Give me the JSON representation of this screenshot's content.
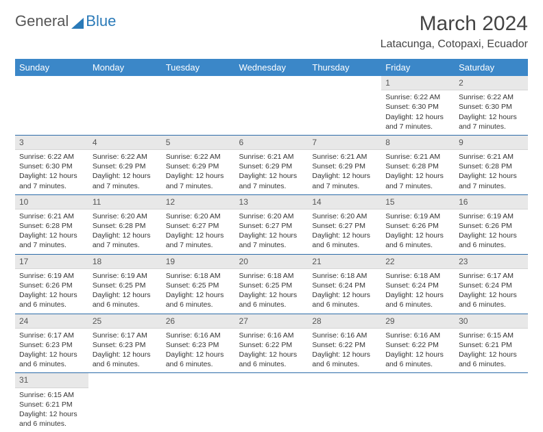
{
  "logo": {
    "part1": "General",
    "part2": "Blue"
  },
  "title": "March 2024",
  "location": "Latacunga, Cotopaxi, Ecuador",
  "headerColor": "#3b87c8",
  "dayHeaders": [
    "Sunday",
    "Monday",
    "Tuesday",
    "Wednesday",
    "Thursday",
    "Friday",
    "Saturday"
  ],
  "weeks": [
    [
      null,
      null,
      null,
      null,
      null,
      {
        "n": "1",
        "sr": "6:22 AM",
        "ss": "6:30 PM",
        "dl": "12 hours and 7 minutes."
      },
      {
        "n": "2",
        "sr": "6:22 AM",
        "ss": "6:30 PM",
        "dl": "12 hours and 7 minutes."
      }
    ],
    [
      {
        "n": "3",
        "sr": "6:22 AM",
        "ss": "6:30 PM",
        "dl": "12 hours and 7 minutes."
      },
      {
        "n": "4",
        "sr": "6:22 AM",
        "ss": "6:29 PM",
        "dl": "12 hours and 7 minutes."
      },
      {
        "n": "5",
        "sr": "6:22 AM",
        "ss": "6:29 PM",
        "dl": "12 hours and 7 minutes."
      },
      {
        "n": "6",
        "sr": "6:21 AM",
        "ss": "6:29 PM",
        "dl": "12 hours and 7 minutes."
      },
      {
        "n": "7",
        "sr": "6:21 AM",
        "ss": "6:29 PM",
        "dl": "12 hours and 7 minutes."
      },
      {
        "n": "8",
        "sr": "6:21 AM",
        "ss": "6:28 PM",
        "dl": "12 hours and 7 minutes."
      },
      {
        "n": "9",
        "sr": "6:21 AM",
        "ss": "6:28 PM",
        "dl": "12 hours and 7 minutes."
      }
    ],
    [
      {
        "n": "10",
        "sr": "6:21 AM",
        "ss": "6:28 PM",
        "dl": "12 hours and 7 minutes."
      },
      {
        "n": "11",
        "sr": "6:20 AM",
        "ss": "6:28 PM",
        "dl": "12 hours and 7 minutes."
      },
      {
        "n": "12",
        "sr": "6:20 AM",
        "ss": "6:27 PM",
        "dl": "12 hours and 7 minutes."
      },
      {
        "n": "13",
        "sr": "6:20 AM",
        "ss": "6:27 PM",
        "dl": "12 hours and 7 minutes."
      },
      {
        "n": "14",
        "sr": "6:20 AM",
        "ss": "6:27 PM",
        "dl": "12 hours and 6 minutes."
      },
      {
        "n": "15",
        "sr": "6:19 AM",
        "ss": "6:26 PM",
        "dl": "12 hours and 6 minutes."
      },
      {
        "n": "16",
        "sr": "6:19 AM",
        "ss": "6:26 PM",
        "dl": "12 hours and 6 minutes."
      }
    ],
    [
      {
        "n": "17",
        "sr": "6:19 AM",
        "ss": "6:26 PM",
        "dl": "12 hours and 6 minutes."
      },
      {
        "n": "18",
        "sr": "6:19 AM",
        "ss": "6:25 PM",
        "dl": "12 hours and 6 minutes."
      },
      {
        "n": "19",
        "sr": "6:18 AM",
        "ss": "6:25 PM",
        "dl": "12 hours and 6 minutes."
      },
      {
        "n": "20",
        "sr": "6:18 AM",
        "ss": "6:25 PM",
        "dl": "12 hours and 6 minutes."
      },
      {
        "n": "21",
        "sr": "6:18 AM",
        "ss": "6:24 PM",
        "dl": "12 hours and 6 minutes."
      },
      {
        "n": "22",
        "sr": "6:18 AM",
        "ss": "6:24 PM",
        "dl": "12 hours and 6 minutes."
      },
      {
        "n": "23",
        "sr": "6:17 AM",
        "ss": "6:24 PM",
        "dl": "12 hours and 6 minutes."
      }
    ],
    [
      {
        "n": "24",
        "sr": "6:17 AM",
        "ss": "6:23 PM",
        "dl": "12 hours and 6 minutes."
      },
      {
        "n": "25",
        "sr": "6:17 AM",
        "ss": "6:23 PM",
        "dl": "12 hours and 6 minutes."
      },
      {
        "n": "26",
        "sr": "6:16 AM",
        "ss": "6:23 PM",
        "dl": "12 hours and 6 minutes."
      },
      {
        "n": "27",
        "sr": "6:16 AM",
        "ss": "6:22 PM",
        "dl": "12 hours and 6 minutes."
      },
      {
        "n": "28",
        "sr": "6:16 AM",
        "ss": "6:22 PM",
        "dl": "12 hours and 6 minutes."
      },
      {
        "n": "29",
        "sr": "6:16 AM",
        "ss": "6:22 PM",
        "dl": "12 hours and 6 minutes."
      },
      {
        "n": "30",
        "sr": "6:15 AM",
        "ss": "6:21 PM",
        "dl": "12 hours and 6 minutes."
      }
    ],
    [
      {
        "n": "31",
        "sr": "6:15 AM",
        "ss": "6:21 PM",
        "dl": "12 hours and 6 minutes."
      },
      null,
      null,
      null,
      null,
      null,
      null
    ]
  ],
  "labels": {
    "sunrise": "Sunrise: ",
    "sunset": "Sunset: ",
    "daylight": "Daylight: "
  }
}
